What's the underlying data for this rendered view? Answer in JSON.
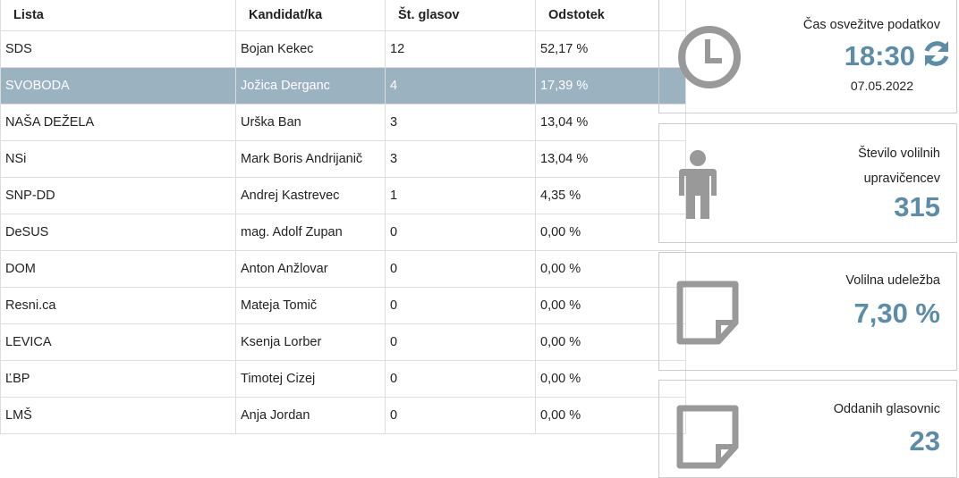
{
  "table": {
    "headers": [
      "Lista",
      "Kandidat/ka",
      "Št. glasov",
      "Odstotek"
    ],
    "selected_row": 1,
    "rows": [
      [
        "SDS",
        "Bojan Kekec",
        "12",
        "52,17 %"
      ],
      [
        "SVOBODA",
        "Jožica Derganc",
        "4",
        "17,39 %"
      ],
      [
        "NAŠA DEŽELA",
        "Urška Ban",
        "3",
        "13,04 %"
      ],
      [
        "NSi",
        "Mark Boris Andrijanič",
        "3",
        "13,04 %"
      ],
      [
        "SNP-DD",
        "Andrej Kastrevec",
        "1",
        "4,35 %"
      ],
      [
        "DeSUS",
        "mag. Adolf Zupan",
        "0",
        "0,00 %"
      ],
      [
        "DOM",
        "Anton Anžlovar",
        "0",
        "0,00 %"
      ],
      [
        "Resni.ca",
        "Mateja Tomič",
        "0",
        "0,00 %"
      ],
      [
        "LEVICA",
        "Ksenja Lorber",
        "0",
        "0,00 %"
      ],
      [
        "ĽBP",
        "Timotej Cizej",
        "0",
        "0,00 %"
      ],
      [
        "LMŠ",
        "Anja Jordan",
        "0",
        "0,00 %"
      ]
    ]
  },
  "cards": [
    {
      "label": "Čas osvežitve podatkov",
      "value": "18:30",
      "date": "07.05.2022"
    },
    {
      "label": "Število volilnih upravičencev",
      "value": "315"
    },
    {
      "label": "Volilna udeležba",
      "value": "7,30 %"
    },
    {
      "label": "Oddanih glasovnic",
      "value": "23"
    }
  ]
}
